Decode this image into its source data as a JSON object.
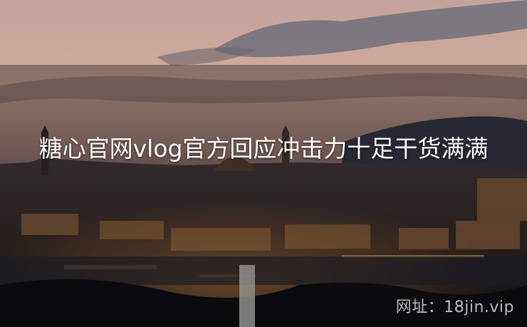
{
  "article": {
    "title": "糖心官网vlog官方回应冲击力十足干货满满"
  },
  "watermark": {
    "text": "网址：18jin.vip"
  },
  "image": {
    "scene": "city-at-dusk-photo"
  }
}
